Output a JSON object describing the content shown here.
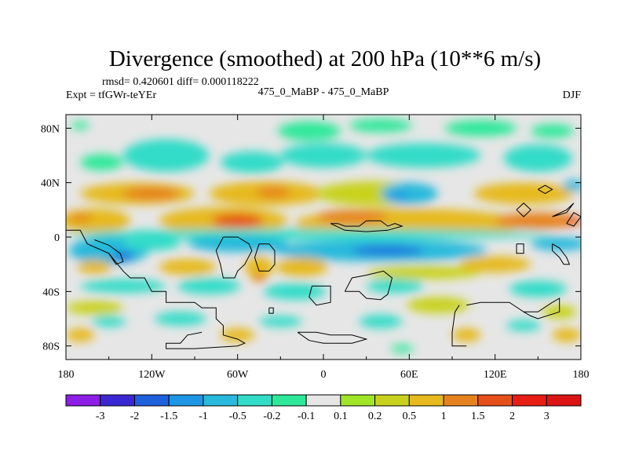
{
  "chart_data": {
    "type": "heatmap",
    "title": "Divergence (smoothed) at 200 hPa (10**6 m/s)",
    "stats": "rmsd= 0.420601 diff= 0.000118222",
    "left_label": "Expt = tfGWr-teYEr",
    "center_label": "475_0_MaBP - 475_0_MaBP",
    "right_label": "DJF",
    "xlim": [
      -180,
      180
    ],
    "ylim": [
      -90,
      90
    ],
    "x_ticks": [
      {
        "value": -180,
        "label": "180"
      },
      {
        "value": -120,
        "label": "120W"
      },
      {
        "value": -60,
        "label": "60W"
      },
      {
        "value": 0,
        "label": "0"
      },
      {
        "value": 60,
        "label": "60E"
      },
      {
        "value": 120,
        "label": "120E"
      },
      {
        "value": 180,
        "label": "180"
      }
    ],
    "y_ticks": [
      {
        "value": 80,
        "label": "80N"
      },
      {
        "value": 40,
        "label": "40N"
      },
      {
        "value": 0,
        "label": "0"
      },
      {
        "value": -40,
        "label": "40S"
      },
      {
        "value": -80,
        "label": "80S"
      }
    ],
    "levels": [
      "-3",
      "-2",
      "-1.5",
      "-1",
      "-0.5",
      "-0.2",
      "-0.1",
      "0.1",
      "0.2",
      "0.5",
      "1",
      "1.5",
      "2",
      "3"
    ],
    "level_values": [
      -3,
      -2,
      -1.5,
      -1,
      -0.5,
      -0.2,
      -0.1,
      0.1,
      0.2,
      0.5,
      1,
      1.5,
      2,
      3
    ],
    "colors": [
      "#8c1ee6",
      "#3c28d2",
      "#1e5fdc",
      "#1e96e6",
      "#28b9dc",
      "#32dcc8",
      "#2ee89a",
      "#e6e6e6",
      "#a0e628",
      "#c8d21e",
      "#e6b91e",
      "#e6821e",
      "#e64f19",
      "#e61e14",
      "#dc1414"
    ],
    "features": [
      {
        "lon": -10,
        "lat": 78,
        "rx": 22,
        "ry": 7,
        "value": -0.15
      },
      {
        "lon": 40,
        "lat": 82,
        "rx": 22,
        "ry": 5,
        "value": -0.15
      },
      {
        "lon": 110,
        "lat": 80,
        "rx": 25,
        "ry": 6,
        "value": -0.15
      },
      {
        "lon": 160,
        "lat": 78,
        "rx": 15,
        "ry": 5,
        "value": -0.15
      },
      {
        "lon": -170,
        "lat": 82,
        "rx": 6,
        "ry": 3,
        "value": -0.15
      },
      {
        "lon": -110,
        "lat": 60,
        "rx": 30,
        "ry": 12,
        "value": -0.3
      },
      {
        "lon": -50,
        "lat": 55,
        "rx": 22,
        "ry": 8,
        "value": -0.3
      },
      {
        "lon": 0,
        "lat": 60,
        "rx": 30,
        "ry": 9,
        "value": -0.3
      },
      {
        "lon": 70,
        "lat": 60,
        "rx": 40,
        "ry": 9,
        "value": -0.3
      },
      {
        "lon": 150,
        "lat": 58,
        "rx": 24,
        "ry": 10,
        "value": -0.3
      },
      {
        "lon": -155,
        "lat": 55,
        "rx": 15,
        "ry": 6,
        "value": -0.15
      },
      {
        "lon": -130,
        "lat": 32,
        "rx": 40,
        "ry": 8,
        "value": 0.7
      },
      {
        "lon": -120,
        "lat": 32,
        "rx": 20,
        "ry": 5,
        "value": 1.2
      },
      {
        "lon": -40,
        "lat": 32,
        "rx": 40,
        "ry": 9,
        "value": 0.7
      },
      {
        "lon": -35,
        "lat": 33,
        "rx": 12,
        "ry": 4,
        "value": 1.2
      },
      {
        "lon": 35,
        "lat": 32,
        "rx": 40,
        "ry": 9,
        "value": 0.3
      },
      {
        "lon": 60,
        "lat": 32,
        "rx": 20,
        "ry": 8,
        "value": -0.7
      },
      {
        "lon": 52,
        "lat": 30,
        "rx": 8,
        "ry": 3,
        "value": -1.2
      },
      {
        "lon": 140,
        "lat": 32,
        "rx": 35,
        "ry": 8,
        "value": 0.7
      },
      {
        "lon": 175,
        "lat": 38,
        "rx": 8,
        "ry": 4,
        "value": -0.7
      },
      {
        "lon": -160,
        "lat": 12,
        "rx": 25,
        "ry": 9,
        "value": 0.7
      },
      {
        "lon": -170,
        "lat": 14,
        "rx": 8,
        "ry": 3,
        "value": 1.2
      },
      {
        "lon": -70,
        "lat": 12,
        "rx": 45,
        "ry": 10,
        "value": 0.7
      },
      {
        "lon": -60,
        "lat": 12,
        "rx": 18,
        "ry": 5,
        "value": 1.7
      },
      {
        "lon": 60,
        "lat": 10,
        "rx": 80,
        "ry": 11,
        "value": 0.8
      },
      {
        "lon": 20,
        "lat": 15,
        "rx": 25,
        "ry": 5,
        "value": 1.2
      },
      {
        "lon": 150,
        "lat": 12,
        "rx": 30,
        "ry": 6,
        "value": 1.2
      },
      {
        "lon": 175,
        "lat": 12,
        "rx": 6,
        "ry": 3,
        "value": 1.7
      },
      {
        "lon": -10,
        "lat": 2,
        "rx": 170,
        "ry": 4,
        "value": -0.3
      },
      {
        "lon": -150,
        "lat": -10,
        "rx": 28,
        "ry": 10,
        "value": -0.7
      },
      {
        "lon": -140,
        "lat": -14,
        "rx": 8,
        "ry": 3,
        "value": -1.7
      },
      {
        "lon": -120,
        "lat": -5,
        "rx": 20,
        "ry": 5,
        "value": -0.3
      },
      {
        "lon": -60,
        "lat": -5,
        "rx": 35,
        "ry": 6,
        "value": -0.7
      },
      {
        "lon": 40,
        "lat": -10,
        "rx": 75,
        "ry": 8,
        "value": -0.8
      },
      {
        "lon": 45,
        "lat": -10,
        "rx": 25,
        "ry": 3,
        "value": -1.8
      },
      {
        "lon": 165,
        "lat": -5,
        "rx": 20,
        "ry": 5,
        "value": -0.7
      },
      {
        "lon": -160,
        "lat": -22,
        "rx": 12,
        "ry": 5,
        "value": 0.7
      },
      {
        "lon": -95,
        "lat": -22,
        "rx": 20,
        "ry": 6,
        "value": 0.7
      },
      {
        "lon": -45,
        "lat": -22,
        "rx": 10,
        "ry": 8,
        "value": 0.7
      },
      {
        "lon": -45,
        "lat": -30,
        "rx": 5,
        "ry": 3,
        "value": 1.2
      },
      {
        "lon": -15,
        "lat": -22,
        "rx": 18,
        "ry": 7,
        "value": 0.7
      },
      {
        "lon": 70,
        "lat": -26,
        "rx": 40,
        "ry": 5,
        "value": 0.3
      },
      {
        "lon": 120,
        "lat": -20,
        "rx": 25,
        "ry": 6,
        "value": 0.7
      },
      {
        "lon": -140,
        "lat": -36,
        "rx": 30,
        "ry": 5,
        "value": -0.3
      },
      {
        "lon": -80,
        "lat": -36,
        "rx": 22,
        "ry": 6,
        "value": -0.3
      },
      {
        "lon": -20,
        "lat": -40,
        "rx": 22,
        "ry": 6,
        "value": -0.3
      },
      {
        "lon": 50,
        "lat": -36,
        "rx": 20,
        "ry": 5,
        "value": -0.3
      },
      {
        "lon": 150,
        "lat": -38,
        "rx": 20,
        "ry": 6,
        "value": -0.3
      },
      {
        "lon": -160,
        "lat": -52,
        "rx": 20,
        "ry": 5,
        "value": 0.3
      },
      {
        "lon": 80,
        "lat": -50,
        "rx": 22,
        "ry": 6,
        "value": 0.3
      },
      {
        "lon": 165,
        "lat": -55,
        "rx": 12,
        "ry": 5,
        "value": 0.3
      },
      {
        "lon": -150,
        "lat": -62,
        "rx": 12,
        "ry": 4,
        "value": -0.3
      },
      {
        "lon": -100,
        "lat": -60,
        "rx": 18,
        "ry": 5,
        "value": -0.3
      },
      {
        "lon": -30,
        "lat": -62,
        "rx": 15,
        "ry": 4,
        "value": -0.3
      },
      {
        "lon": 40,
        "lat": -62,
        "rx": 15,
        "ry": 5,
        "value": -0.3
      },
      {
        "lon": 140,
        "lat": -65,
        "rx": 12,
        "ry": 4,
        "value": -0.3
      },
      {
        "lon": -170,
        "lat": -72,
        "rx": 10,
        "ry": 5,
        "value": 0.5
      },
      {
        "lon": -60,
        "lat": -72,
        "rx": 12,
        "ry": 5,
        "value": 0.5
      },
      {
        "lon": 100,
        "lat": -72,
        "rx": 10,
        "ry": 5,
        "value": 0.5
      },
      {
        "lon": 170,
        "lat": -72,
        "rx": 10,
        "ry": 5,
        "value": 0.5
      },
      {
        "lon": 55,
        "lat": -82,
        "rx": 8,
        "ry": 3,
        "value": -0.15
      }
    ],
    "coastlines": [
      [
        [
          -180,
          5
        ],
        [
          -170,
          5
        ],
        [
          -165,
          -5
        ],
        [
          -150,
          -12
        ],
        [
          -140,
          -25
        ],
        [
          -135,
          -30
        ],
        [
          -125,
          -30
        ],
        [
          -120,
          -40
        ],
        [
          -110,
          -40
        ],
        [
          -110,
          -48
        ],
        [
          -90,
          -48
        ],
        [
          -85,
          -52
        ],
        [
          -75,
          -52
        ],
        [
          -75,
          -60
        ],
        [
          -70,
          -65
        ],
        [
          -70,
          -72
        ],
        [
          -60,
          -75
        ],
        [
          -55,
          -78
        ],
        [
          -60,
          -80
        ],
        [
          -90,
          -82
        ],
        [
          -110,
          -82
        ],
        [
          -110,
          -78
        ],
        [
          -100,
          -78
        ],
        [
          -95,
          -72
        ],
        [
          -85,
          -70
        ]
      ],
      [
        [
          -160,
          -2
        ],
        [
          -150,
          -6
        ],
        [
          -142,
          -12
        ],
        [
          -140,
          -18
        ],
        [
          -145,
          -20
        ],
        [
          -150,
          -12
        ]
      ],
      [
        [
          -70,
          0
        ],
        [
          -60,
          0
        ],
        [
          -52,
          -5
        ],
        [
          -50,
          -10
        ],
        [
          -55,
          -20
        ],
        [
          -60,
          -25
        ],
        [
          -62,
          -30
        ],
        [
          -70,
          -30
        ],
        [
          -72,
          -20
        ],
        [
          -75,
          -10
        ],
        [
          -70,
          0
        ]
      ],
      [
        [
          -45,
          -5
        ],
        [
          -38,
          -5
        ],
        [
          -34,
          -10
        ],
        [
          -34,
          -20
        ],
        [
          -38,
          -25
        ],
        [
          -45,
          -25
        ],
        [
          -48,
          -15
        ],
        [
          -45,
          -5
        ]
      ],
      [
        [
          -38,
          -52
        ],
        [
          -35,
          -52
        ],
        [
          -35,
          -56
        ],
        [
          -38,
          -56
        ],
        [
          -38,
          -52
        ]
      ],
      [
        [
          -8,
          -36
        ],
        [
          5,
          -36
        ],
        [
          5,
          -48
        ],
        [
          -5,
          -50
        ],
        [
          -10,
          -44
        ],
        [
          -8,
          -36
        ]
      ],
      [
        [
          15,
          -40
        ],
        [
          25,
          -40
        ],
        [
          30,
          -45
        ],
        [
          40,
          -46
        ],
        [
          45,
          -42
        ],
        [
          48,
          -30
        ],
        [
          42,
          -25
        ],
        [
          30,
          -28
        ],
        [
          20,
          -30
        ],
        [
          15,
          -40
        ]
      ],
      [
        [
          5,
          10
        ],
        [
          10,
          10
        ],
        [
          15,
          8
        ],
        [
          25,
          8
        ],
        [
          30,
          12
        ],
        [
          40,
          12
        ],
        [
          45,
          8
        ],
        [
          50,
          10
        ],
        [
          55,
          8
        ],
        [
          45,
          5
        ],
        [
          30,
          4
        ],
        [
          15,
          5
        ],
        [
          5,
          10
        ]
      ],
      [
        [
          135,
          -5
        ],
        [
          140,
          -5
        ],
        [
          140,
          -12
        ],
        [
          135,
          -12
        ],
        [
          135,
          -5
        ]
      ],
      [
        [
          100,
          -50
        ],
        [
          110,
          -48
        ],
        [
          130,
          -48
        ],
        [
          140,
          -55
        ],
        [
          150,
          -55
        ],
        [
          160,
          -48
        ],
        [
          165,
          -45
        ],
        [
          165,
          -55
        ],
        [
          150,
          -60
        ],
        [
          145,
          -58
        ],
        [
          140,
          -55
        ]
      ],
      [
        [
          95,
          -50
        ],
        [
          92,
          -55
        ],
        [
          90,
          -70
        ],
        [
          90,
          -80
        ],
        [
          100,
          -80
        ]
      ],
      [
        [
          150,
          35
        ],
        [
          155,
          32
        ],
        [
          160,
          35
        ],
        [
          155,
          38
        ],
        [
          150,
          35
        ]
      ],
      [
        [
          160,
          15
        ],
        [
          170,
          20
        ],
        [
          175,
          25
        ],
        [
          170,
          18
        ],
        [
          160,
          15
        ]
      ],
      [
        [
          160,
          -5
        ],
        [
          165,
          -8
        ],
        [
          170,
          -15
        ],
        [
          172,
          -20
        ],
        [
          168,
          -20
        ],
        [
          165,
          -15
        ],
        [
          160,
          -10
        ],
        [
          160,
          -5
        ]
      ],
      [
        [
          -18,
          -70
        ],
        [
          -5,
          -70
        ],
        [
          5,
          -72
        ],
        [
          20,
          -72
        ],
        [
          30,
          -75
        ],
        [
          20,
          -78
        ],
        [
          0,
          -78
        ],
        [
          -10,
          -76
        ],
        [
          -18,
          -70
        ]
      ],
      [
        [
          135,
          20
        ],
        [
          140,
          15
        ],
        [
          145,
          20
        ],
        [
          140,
          25
        ],
        [
          135,
          20
        ]
      ],
      [
        [
          170,
          10
        ],
        [
          175,
          8
        ],
        [
          180,
          15
        ],
        [
          175,
          18
        ],
        [
          170,
          10
        ]
      ]
    ]
  }
}
